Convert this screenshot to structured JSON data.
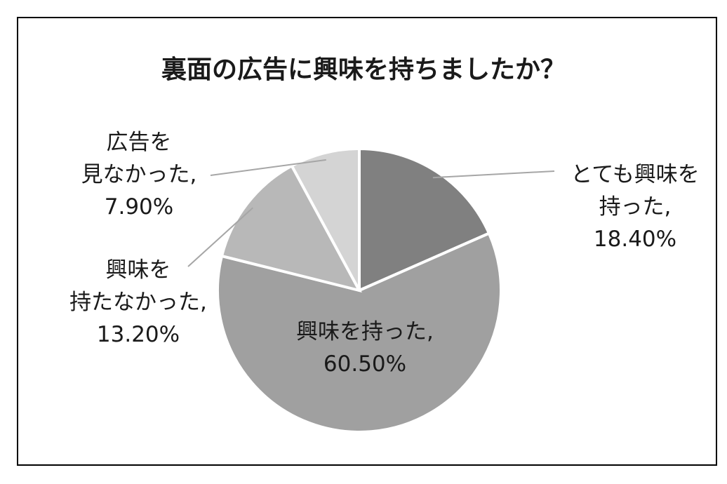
{
  "chart_data": {
    "type": "pie",
    "title": "裏面の広告に興味を持ちましたか？",
    "categories": [
      "とても興味を持った",
      "興味を持った",
      "興味を持たなかった",
      "広告を見なかった"
    ],
    "values": [
      18.4,
      60.5,
      13.2,
      7.9
    ],
    "slices": [
      {
        "label_lines": [
          "とても興味を",
          "持った,"
        ],
        "value_text": "18.40%",
        "value": 18.4,
        "color": "#808080"
      },
      {
        "label_lines": [
          "興味を持った,"
        ],
        "value_text": "60.50%",
        "value": 60.5,
        "color": "#a0a0a0"
      },
      {
        "label_lines": [
          "興味を",
          "持たなかった,"
        ],
        "value_text": "13.20%",
        "value": 13.2,
        "color": "#b8b8b8"
      },
      {
        "label_lines": [
          "広告を",
          "見なかった,"
        ],
        "value_text": "7.90%",
        "value": 7.9,
        "color": "#d4d4d4"
      }
    ],
    "start_angle": "12 o'clock",
    "direction": "clockwise",
    "legend": "none"
  }
}
